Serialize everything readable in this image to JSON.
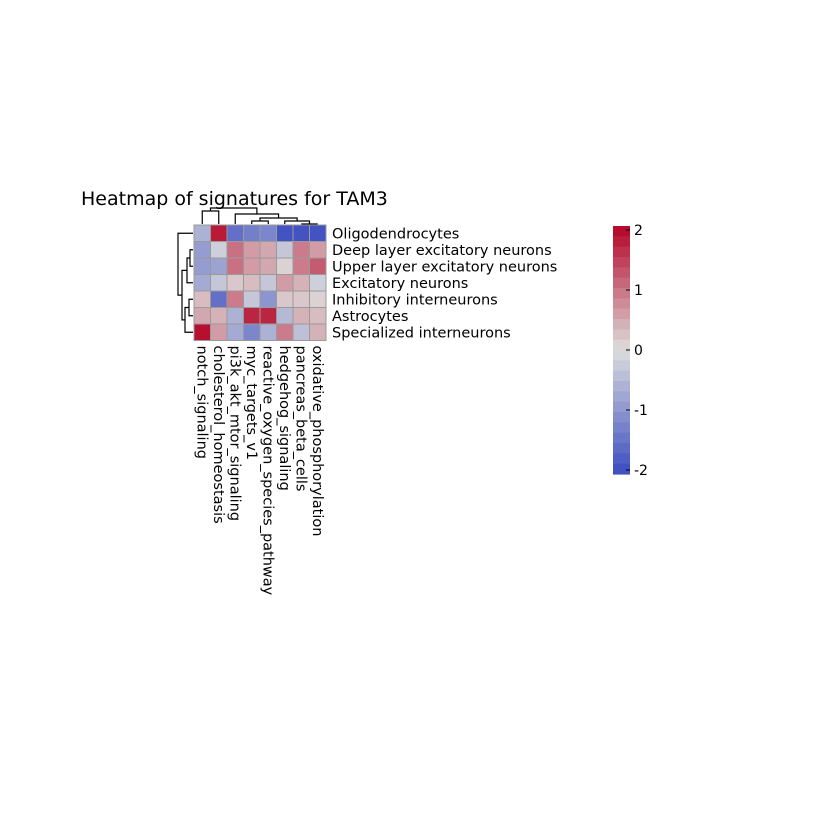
{
  "chart_data": {
    "type": "heatmap",
    "title": "Heatmap of signatures for TAM3",
    "rows": [
      "Oligodendrocytes",
      "Deep layer excitatory neurons",
      "Upper layer excitatory neurons",
      "Excitatory neurons",
      "Inhibitory interneurons",
      "Astrocytes",
      "Specialized interneurons"
    ],
    "columns": [
      "notch_signaling",
      "cholesterol_homeostasis",
      "pi3k_akt_mtor_signaling",
      "myc_targets_v1",
      "reactive_oxygen_species_pathway",
      "hedgehog_signaling",
      "pancreas_beta_cells",
      "oxidative_phosphorylation"
    ],
    "values": [
      [
        -0.6,
        1.8,
        -1.5,
        -1.3,
        -1.2,
        -1.9,
        -1.9,
        -1.9
      ],
      [
        -0.9,
        -0.2,
        1.0,
        0.6,
        0.5,
        -0.3,
        0.9,
        0.6
      ],
      [
        -0.9,
        -0.8,
        1.0,
        0.6,
        0.5,
        0.1,
        0.9,
        1.2
      ],
      [
        -0.7,
        -0.3,
        0.2,
        0.3,
        -0.3,
        0.6,
        0.4,
        -0.2
      ],
      [
        0.3,
        -1.5,
        0.9,
        -0.3,
        -1.0,
        0.2,
        0.2,
        0.1
      ],
      [
        0.5,
        0.4,
        -0.6,
        1.7,
        1.7,
        -0.5,
        0.4,
        0.3
      ],
      [
        1.9,
        0.6,
        -0.7,
        -1.2,
        -0.6,
        0.9,
        -0.4,
        0.4
      ]
    ],
    "color_scale": {
      "min": -2,
      "max": 2,
      "low": "#3b4cc0",
      "mid": "#dddddd",
      "high": "#b40426"
    },
    "legend": {
      "ticks": [
        2,
        1,
        0,
        -1,
        -2
      ],
      "labels": [
        "2",
        "1",
        "0",
        "-1",
        "-2"
      ],
      "position": "right"
    },
    "row_dendrogram": true,
    "column_dendrogram": true
  }
}
